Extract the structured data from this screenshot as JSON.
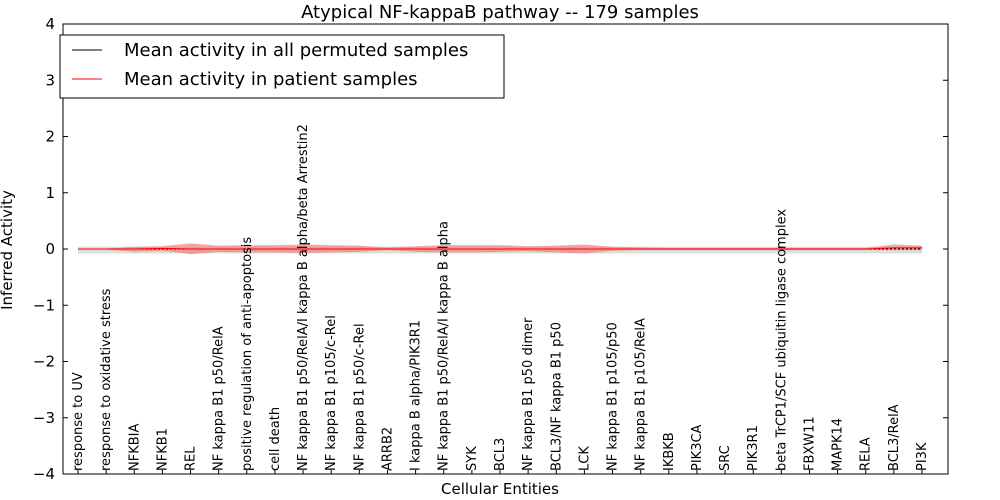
{
  "chart_data": {
    "type": "line",
    "title": "Atypical NF-kappaB pathway -- 179 samples",
    "xlabel": "Cellular Entities",
    "ylabel": "Inferred Activity",
    "ylim": [
      -4,
      4
    ],
    "yticks": [
      -4,
      -3,
      -2,
      -1,
      0,
      1,
      2,
      3,
      4
    ],
    "ytick_labels": [
      "−4",
      "−3",
      "−2",
      "−1",
      "0",
      "1",
      "2",
      "3",
      "4"
    ],
    "grid": false,
    "legend_position": "top-left",
    "categories": [
      "response to UV",
      "response to oxidative stress",
      "NFKBIA",
      "NFKB1",
      "REL",
      "NF kappa B1 p50/RelA",
      "positive regulation of anti-apoptosis",
      "cell death",
      "NF kappa B1 p50/RelA/I kappa B alpha/beta Arrestin2",
      "NF kappa B1 p105/c-Rel",
      "NF kappa B1 p50/c-Rel",
      "ARRB2",
      "I kappa B alpha/PIK3R1",
      "NF kappa B1 p50/RelA/I kappa B alpha",
      "SYK",
      "BCL3",
      "NF kappa B1 p50 dimer",
      "BCL3/NF kappa B1 p50",
      "LCK",
      "NF kappa B1 p105/p50",
      "NF kappa B1 p105/RelA",
      "IKBKB",
      "PIK3CA",
      "SRC",
      "PIK3R1",
      "beta TrCP1/SCF ubiquitin ligase complex",
      "FBXW11",
      "MAPK14",
      "RELA",
      "BCL3/RelA",
      "PI3K"
    ],
    "series": [
      {
        "name": "Mean activity in all permuted samples",
        "color": "#000000",
        "values": [
          0,
          0,
          0,
          0,
          0,
          0,
          0,
          0,
          0,
          0,
          0,
          0,
          0,
          0,
          0,
          0,
          0,
          0,
          0,
          0,
          0,
          0,
          0,
          0,
          0,
          0,
          0,
          0,
          0,
          0,
          0
        ],
        "band_upper": [
          0.04,
          0.04,
          0.04,
          0.04,
          0.04,
          0.04,
          0.04,
          0.04,
          0.04,
          0.04,
          0.04,
          0.04,
          0.04,
          0.04,
          0.04,
          0.04,
          0.04,
          0.04,
          0.04,
          0.04,
          0.04,
          0.04,
          0.04,
          0.04,
          0.04,
          0.04,
          0.04,
          0.04,
          0.04,
          0.04,
          0.04
        ],
        "band_lower": [
          -0.08,
          -0.08,
          -0.08,
          -0.08,
          -0.08,
          -0.08,
          -0.08,
          -0.08,
          -0.08,
          -0.08,
          -0.08,
          -0.08,
          -0.08,
          -0.08,
          -0.08,
          -0.08,
          -0.08,
          -0.08,
          -0.08,
          -0.08,
          -0.08,
          -0.08,
          -0.08,
          -0.08,
          -0.08,
          -0.08,
          -0.08,
          -0.08,
          -0.08,
          -0.08,
          -0.08
        ]
      },
      {
        "name": "Mean activity in patient samples",
        "color": "#ff0000",
        "band_color": "#f08080",
        "values": [
          0,
          0,
          0,
          0.01,
          0,
          0,
          0,
          0,
          0,
          0,
          0,
          0,
          0,
          0,
          0,
          0,
          0,
          0,
          0,
          0,
          0,
          0,
          0,
          0,
          0,
          0,
          0,
          0,
          0,
          0.02,
          0.02
        ],
        "band_upper": [
          0.01,
          0.01,
          0.04,
          0.05,
          0.1,
          0.06,
          0.07,
          0.07,
          0.08,
          0.07,
          0.06,
          0.03,
          0.05,
          0.07,
          0.07,
          0.07,
          0.05,
          0.06,
          0.08,
          0.04,
          0.03,
          0.02,
          0.02,
          0.02,
          0.02,
          0.02,
          0.02,
          0.02,
          0.02,
          0.08,
          0.06
        ],
        "band_lower": [
          -0.01,
          -0.01,
          -0.05,
          -0.03,
          -0.09,
          -0.05,
          -0.06,
          -0.06,
          -0.07,
          -0.06,
          -0.05,
          -0.02,
          -0.05,
          -0.06,
          -0.06,
          -0.05,
          -0.04,
          -0.06,
          -0.08,
          -0.03,
          -0.02,
          -0.02,
          -0.02,
          -0.02,
          -0.02,
          -0.02,
          -0.02,
          -0.02,
          -0.02,
          -0.02,
          -0.02
        ]
      }
    ]
  }
}
